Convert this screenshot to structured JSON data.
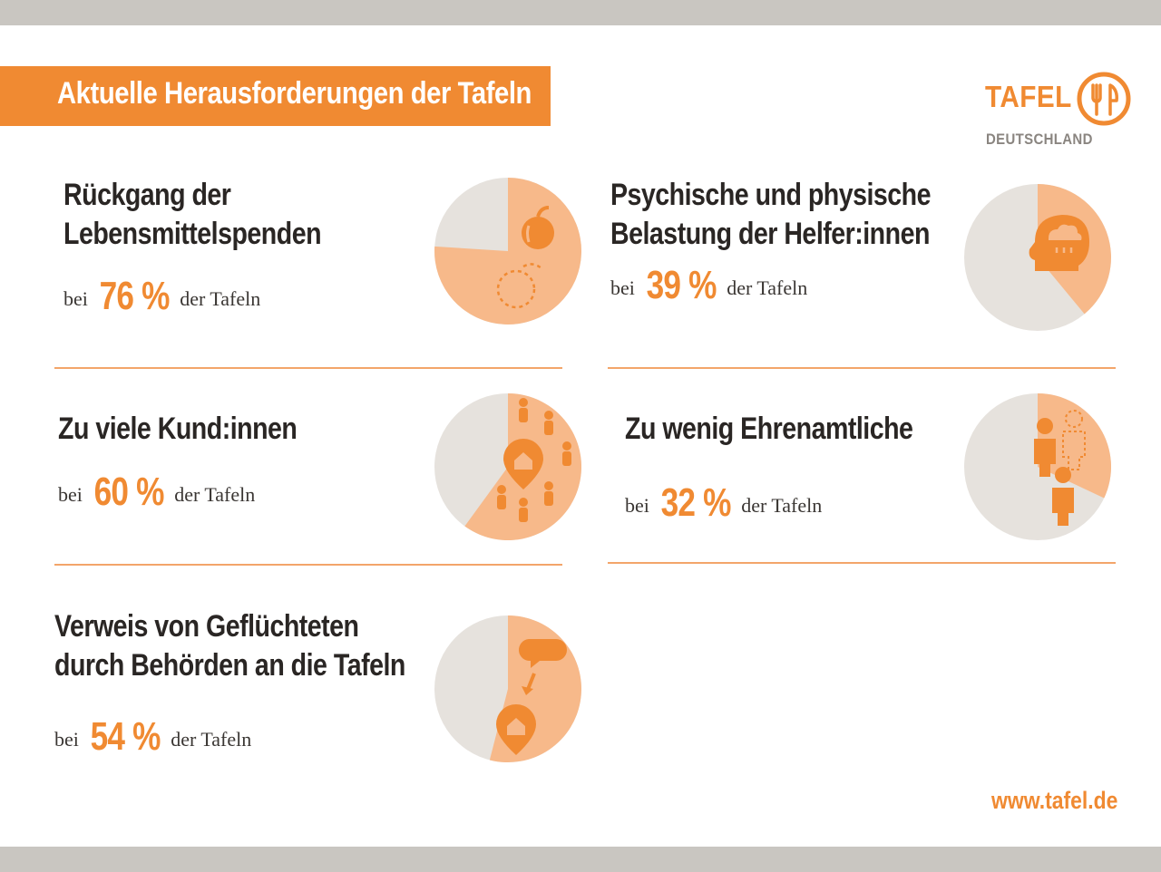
{
  "title": "Aktuelle Herausforderungen der Tafeln",
  "logo": {
    "word": "TAFEL",
    "sub": "DEUTSCHLAND"
  },
  "website": "www.tafel.de",
  "colors": {
    "accent": "#f08a32",
    "accent_light": "#f7b98a",
    "pie_bg": "#e6e2dd",
    "text": "#2a2624"
  },
  "chart_data": {
    "type": "pie",
    "unit": "%",
    "items": [
      {
        "heading": "Rückgang der\nLebensmittelspenden",
        "prefix": "bei",
        "value": 76,
        "value_label": "76 %",
        "suffix": "der Tafeln",
        "icon": "apple-icon"
      },
      {
        "heading": "Psychische und physische\nBelastung der Helfer:innen",
        "prefix": "bei",
        "value": 39,
        "value_label": "39 %",
        "suffix": "der Tafeln",
        "icon": "head-cloud-icon"
      },
      {
        "heading": "Zu viele Kund:innen",
        "prefix": "bei",
        "value": 60,
        "value_label": "60 %",
        "suffix": "der Tafeln",
        "icon": "people-home-icon"
      },
      {
        "heading": "Zu wenig Ehrenamtliche",
        "prefix": "bei",
        "value": 32,
        "value_label": "32 %",
        "suffix": "der Tafeln",
        "icon": "volunteers-icon"
      },
      {
        "heading": "Verweis von Geflüchteten\ndurch Behörden an die Tafeln",
        "prefix": "bei",
        "value": 54,
        "value_label": "54 %",
        "suffix": "der Tafeln",
        "icon": "speech-home-icon"
      }
    ]
  }
}
